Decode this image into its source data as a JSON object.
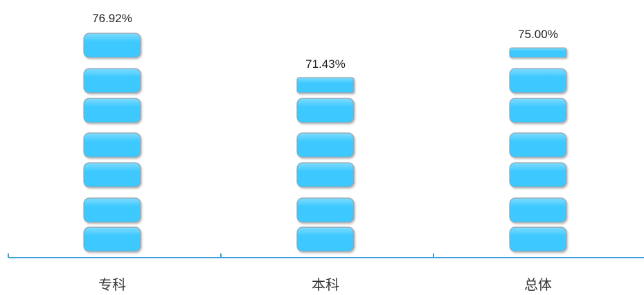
{
  "chart_data": {
    "type": "bar",
    "categories": [
      "专科",
      "本科",
      "总体"
    ],
    "values": [
      76.92,
      71.43,
      75.0
    ],
    "value_labels": [
      "76.92%",
      "71.43%",
      "75.00%"
    ],
    "unit": "%",
    "title": "",
    "xlabel": "",
    "ylabel": "",
    "ylim": [
      0,
      100
    ],
    "grid": false,
    "legend": "none",
    "bar_style": "stacked-blocks",
    "colors": {
      "block_fill": "#3ec9ff",
      "block_fill_light": "#7fdcff",
      "block_stroke": "#9aa3ab",
      "axis": "#3a9fd8",
      "label_text": "#222222",
      "category_text": "#333333"
    }
  }
}
